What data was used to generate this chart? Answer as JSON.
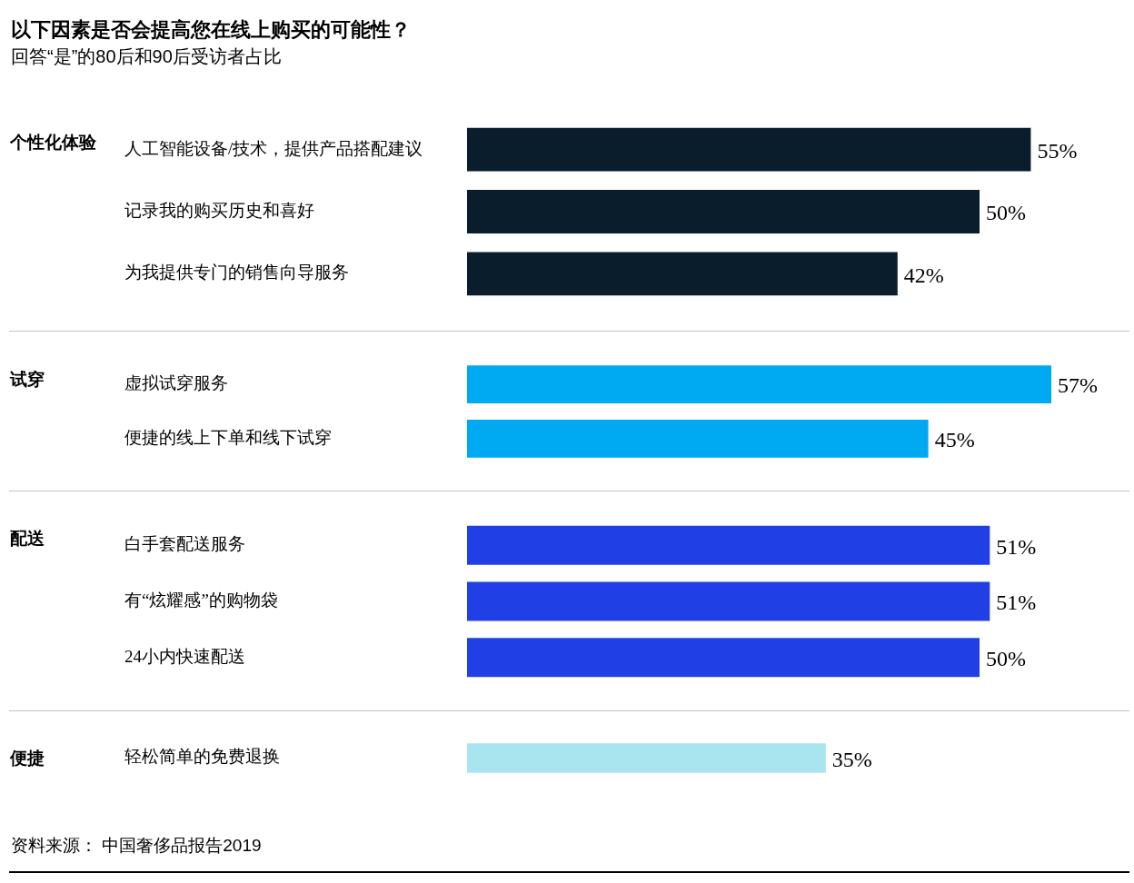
{
  "chart_data": [
    {
      "type": "bar",
      "orientation": "horizontal",
      "title": "以下因素是否会提高您在线上购买的可能性？",
      "subtitle": "回答“是”的80后和90后受访者占比",
      "ylabel": "个性化体验",
      "categories": [
        "人工智能设备/技术，提供产品搭配建议",
        "记录我的购买历史和喜好",
        "为我提供专门的销售向导服务"
      ],
      "values": [
        55,
        50,
        42
      ],
      "value_labels": [
        "55%",
        "50%",
        "42%"
      ],
      "color": "#0a1d2d",
      "tick_labels": "y"
    },
    {
      "type": "bar",
      "orientation": "horizontal",
      "ylabel": "试穿",
      "categories": [
        "虚拟试穿服务",
        "便捷的线上下单和线下试穿"
      ],
      "values": [
        57,
        45
      ],
      "value_labels": [
        "57%",
        "45%"
      ],
      "color": "#00aaf2",
      "tick_labels": "y"
    },
    {
      "type": "bar",
      "orientation": "horizontal",
      "ylabel": "配送",
      "categories": [
        "白手套配送服务",
        "有“炫耀感”的购物袋",
        "24小内快速配送"
      ],
      "values": [
        51,
        51,
        50
      ],
      "value_labels": [
        "51%",
        "51%",
        "50%"
      ],
      "color": "#2040e6",
      "tick_labels": "y"
    },
    {
      "type": "bar",
      "orientation": "horizontal",
      "ylabel": "便捷",
      "categories": [
        "轻松简单的免费退换"
      ],
      "values": [
        35
      ],
      "value_labels": [
        "35%"
      ],
      "color": "#a8e5ee",
      "tick_labels": "y",
      "annotations": [
        "资料来源： 中国奢侈品报告2019"
      ]
    }
  ]
}
